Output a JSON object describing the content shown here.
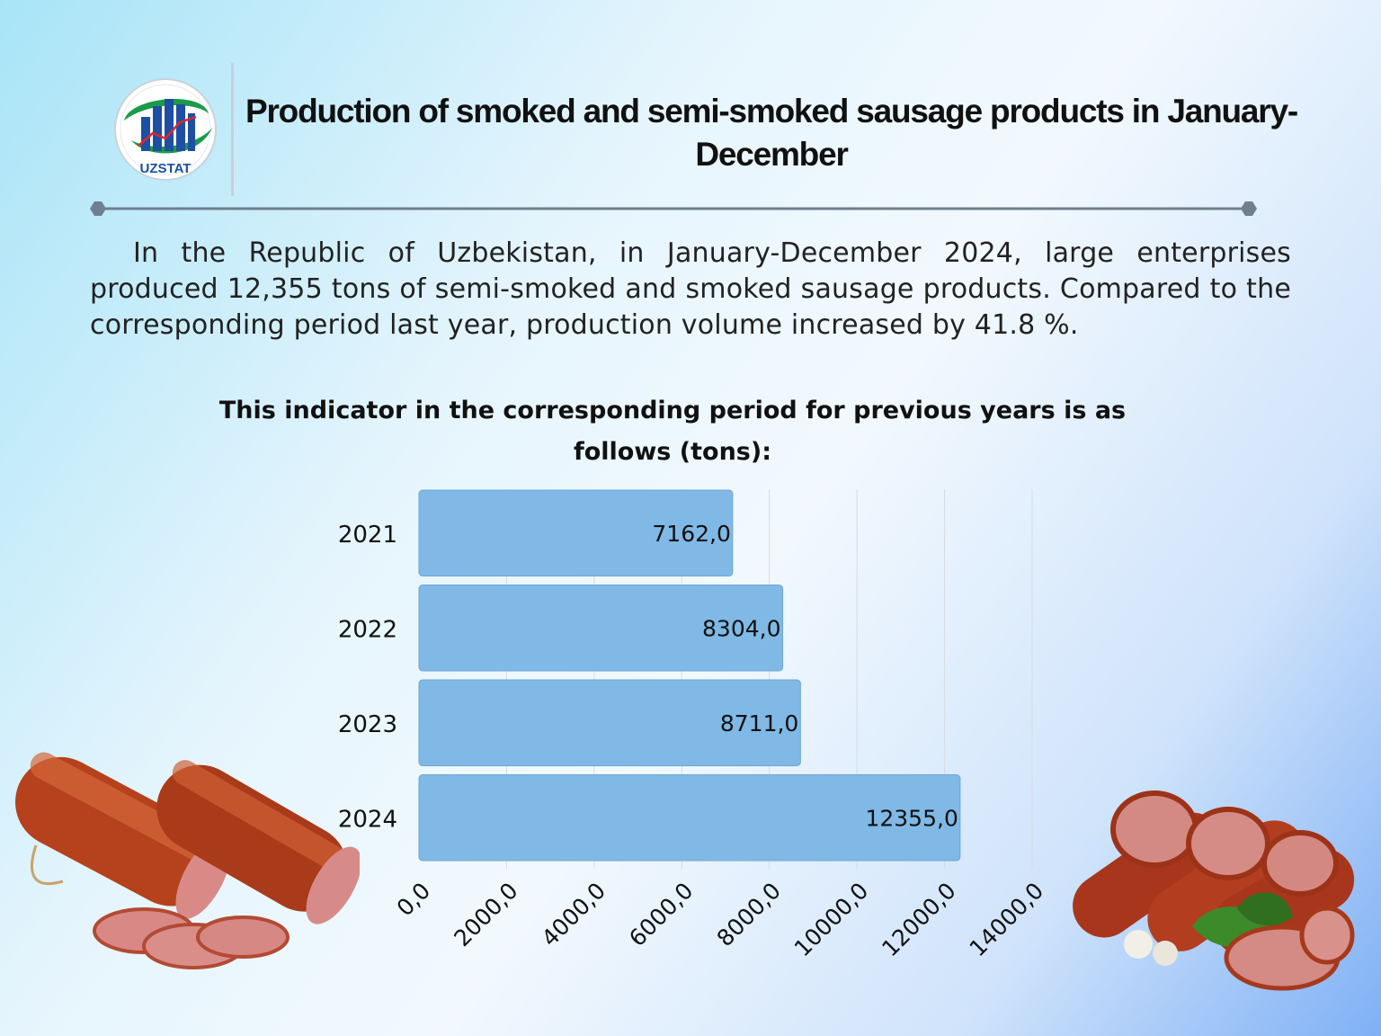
{
  "header": {
    "logo_text": "UZSTAT",
    "title": "Production of smoked and semi-smoked sausage products in January-December"
  },
  "intro": {
    "text": "In the Republic of Uzbekistan, in January-December 2024, large enterprises produced 12,355 tons of semi-smoked and smoked sausage products. Compared to the corresponding period last year, production volume increased by 41.8 %."
  },
  "colors": {
    "bar": "#80b9e6",
    "bar_stroke": "#6ea6d6",
    "grid": "#d6dbe2",
    "text": "#111111"
  },
  "chart_data": {
    "type": "bar",
    "orientation": "horizontal",
    "title": "This indicator in the corresponding period for previous years is as follows (tons):",
    "categories": [
      "2021",
      "2022",
      "2023",
      "2024"
    ],
    "values": [
      7162.0,
      8304.0,
      8711.0,
      12355.0
    ],
    "value_labels": [
      "7162,0",
      "8304,0",
      "8711,0",
      "12355,0"
    ],
    "xlim": [
      0,
      14000
    ],
    "x_ticks": [
      0,
      2000,
      4000,
      6000,
      8000,
      10000,
      12000,
      14000
    ],
    "x_tick_labels": [
      "0,0",
      "2000,0",
      "4000,0",
      "6000,0",
      "8000,0",
      "10000,0",
      "12000,0",
      "14000,0"
    ],
    "grid": true,
    "legend": "none"
  }
}
